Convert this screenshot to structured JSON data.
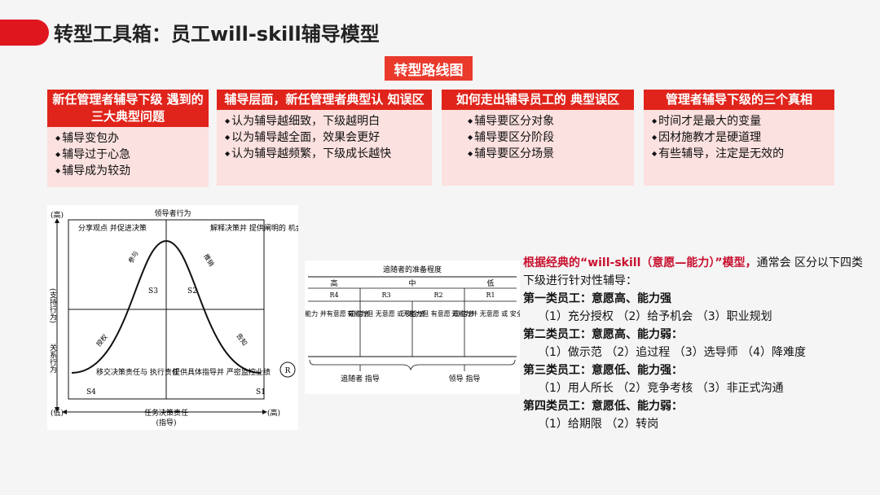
{
  "title": "转型工具箱：员工will-skill辅导模型",
  "roadmap_label": "转型路线图",
  "cards": [
    {
      "header": "新任管理者辅导下级 遇到的三大典型问题",
      "items": [
        "辅导变包办",
        "辅导过于心急",
        "辅导成为较劲"
      ]
    },
    {
      "header": "辅导层面，新任管理者典型认 知误区",
      "items": [
        "认为辅导越细致，下级越明白",
        "以为辅导越全面，效果会更好",
        "认为辅导越频繁，下级成长越快"
      ]
    },
    {
      "header": "如何走出辅导员工的 典型误区",
      "items": [
        "辅导要区分对象",
        "辅导要区分阶段",
        "辅导要区分场景"
      ]
    },
    {
      "header": "管理者辅导下级的三个真相",
      "items": [
        "时间才是最大的变量",
        "因材施教才是硬道理",
        "有些辅导，注定是无效的"
      ]
    }
  ],
  "diagram": {
    "top_label": "领导者行为",
    "high": "(高)",
    "low": "(低)",
    "high_right": "(高)",
    "y_axis_1": "(支持行为)",
    "y_axis_2": "关系行为",
    "q_tl": "分享观点 并促进决策",
    "q_tr": "解释决策并 提供阐明的 机会",
    "q_bl": "移交决策责任与 执行责任",
    "q_br": "提供具体指导并 严密监控业绩",
    "s1": "S1",
    "s2": "S2",
    "s3": "S3",
    "s4": "S4",
    "curve_participate": "参与",
    "curve_sell": "推销",
    "curve_delegate": "授权",
    "curve_tell": "告知",
    "r_label": "R",
    "x_axis_1": "任务决策责任",
    "x_axis_2": "(指导)"
  },
  "readiness": {
    "title": "追随者的准备程度",
    "levels": [
      "高",
      "中",
      "低"
    ],
    "codes": [
      "R4",
      "R3",
      "R2",
      "R1"
    ],
    "descs": [
      "有能力 并有意愿 或 信息",
      "有能力但 无意愿 或 安全感",
      "无能力但 有意愿 或 信息",
      "无能力并 无意愿 或 安全感"
    ],
    "guide_left": "追随者 指导",
    "guide_right": "领导 指导"
  },
  "right_text": {
    "intro_bold": "根据经典的“will-skill（意愿—能力）”模型，",
    "intro_rest": "通常会 区分以下四类下级进行针对性辅导：",
    "groups": [
      {
        "cat": "第一类员工：意愿高、能力强",
        "opts": "（1）充分授权 （2）给予机会 （3）职业规划"
      },
      {
        "cat": "第二类员工：意愿高、能力弱：",
        "opts": "（1）做示范 （2）追过程 （3）选导师 （4）降难度"
      },
      {
        "cat": "第三类员工：意愿低、能力强：",
        "opts": "（1）用人所长 （2）竞争考核 （3）非正式沟通"
      },
      {
        "cat": "第四类员工：意愿低、能力弱：",
        "opts": "（1）给期限 （2）转岗"
      }
    ]
  }
}
